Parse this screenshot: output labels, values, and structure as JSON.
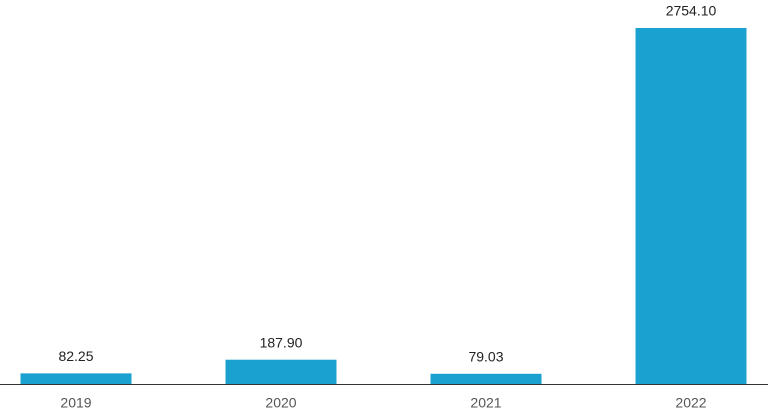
{
  "chart_data": {
    "type": "bar",
    "categories": [
      "2019",
      "2020",
      "2021",
      "2022"
    ],
    "values": [
      82.25,
      187.9,
      79.03,
      2754.1
    ],
    "value_labels": [
      "82.25",
      "187.90",
      "79.03",
      "2754.10"
    ],
    "color": "#1ba1d0"
  }
}
